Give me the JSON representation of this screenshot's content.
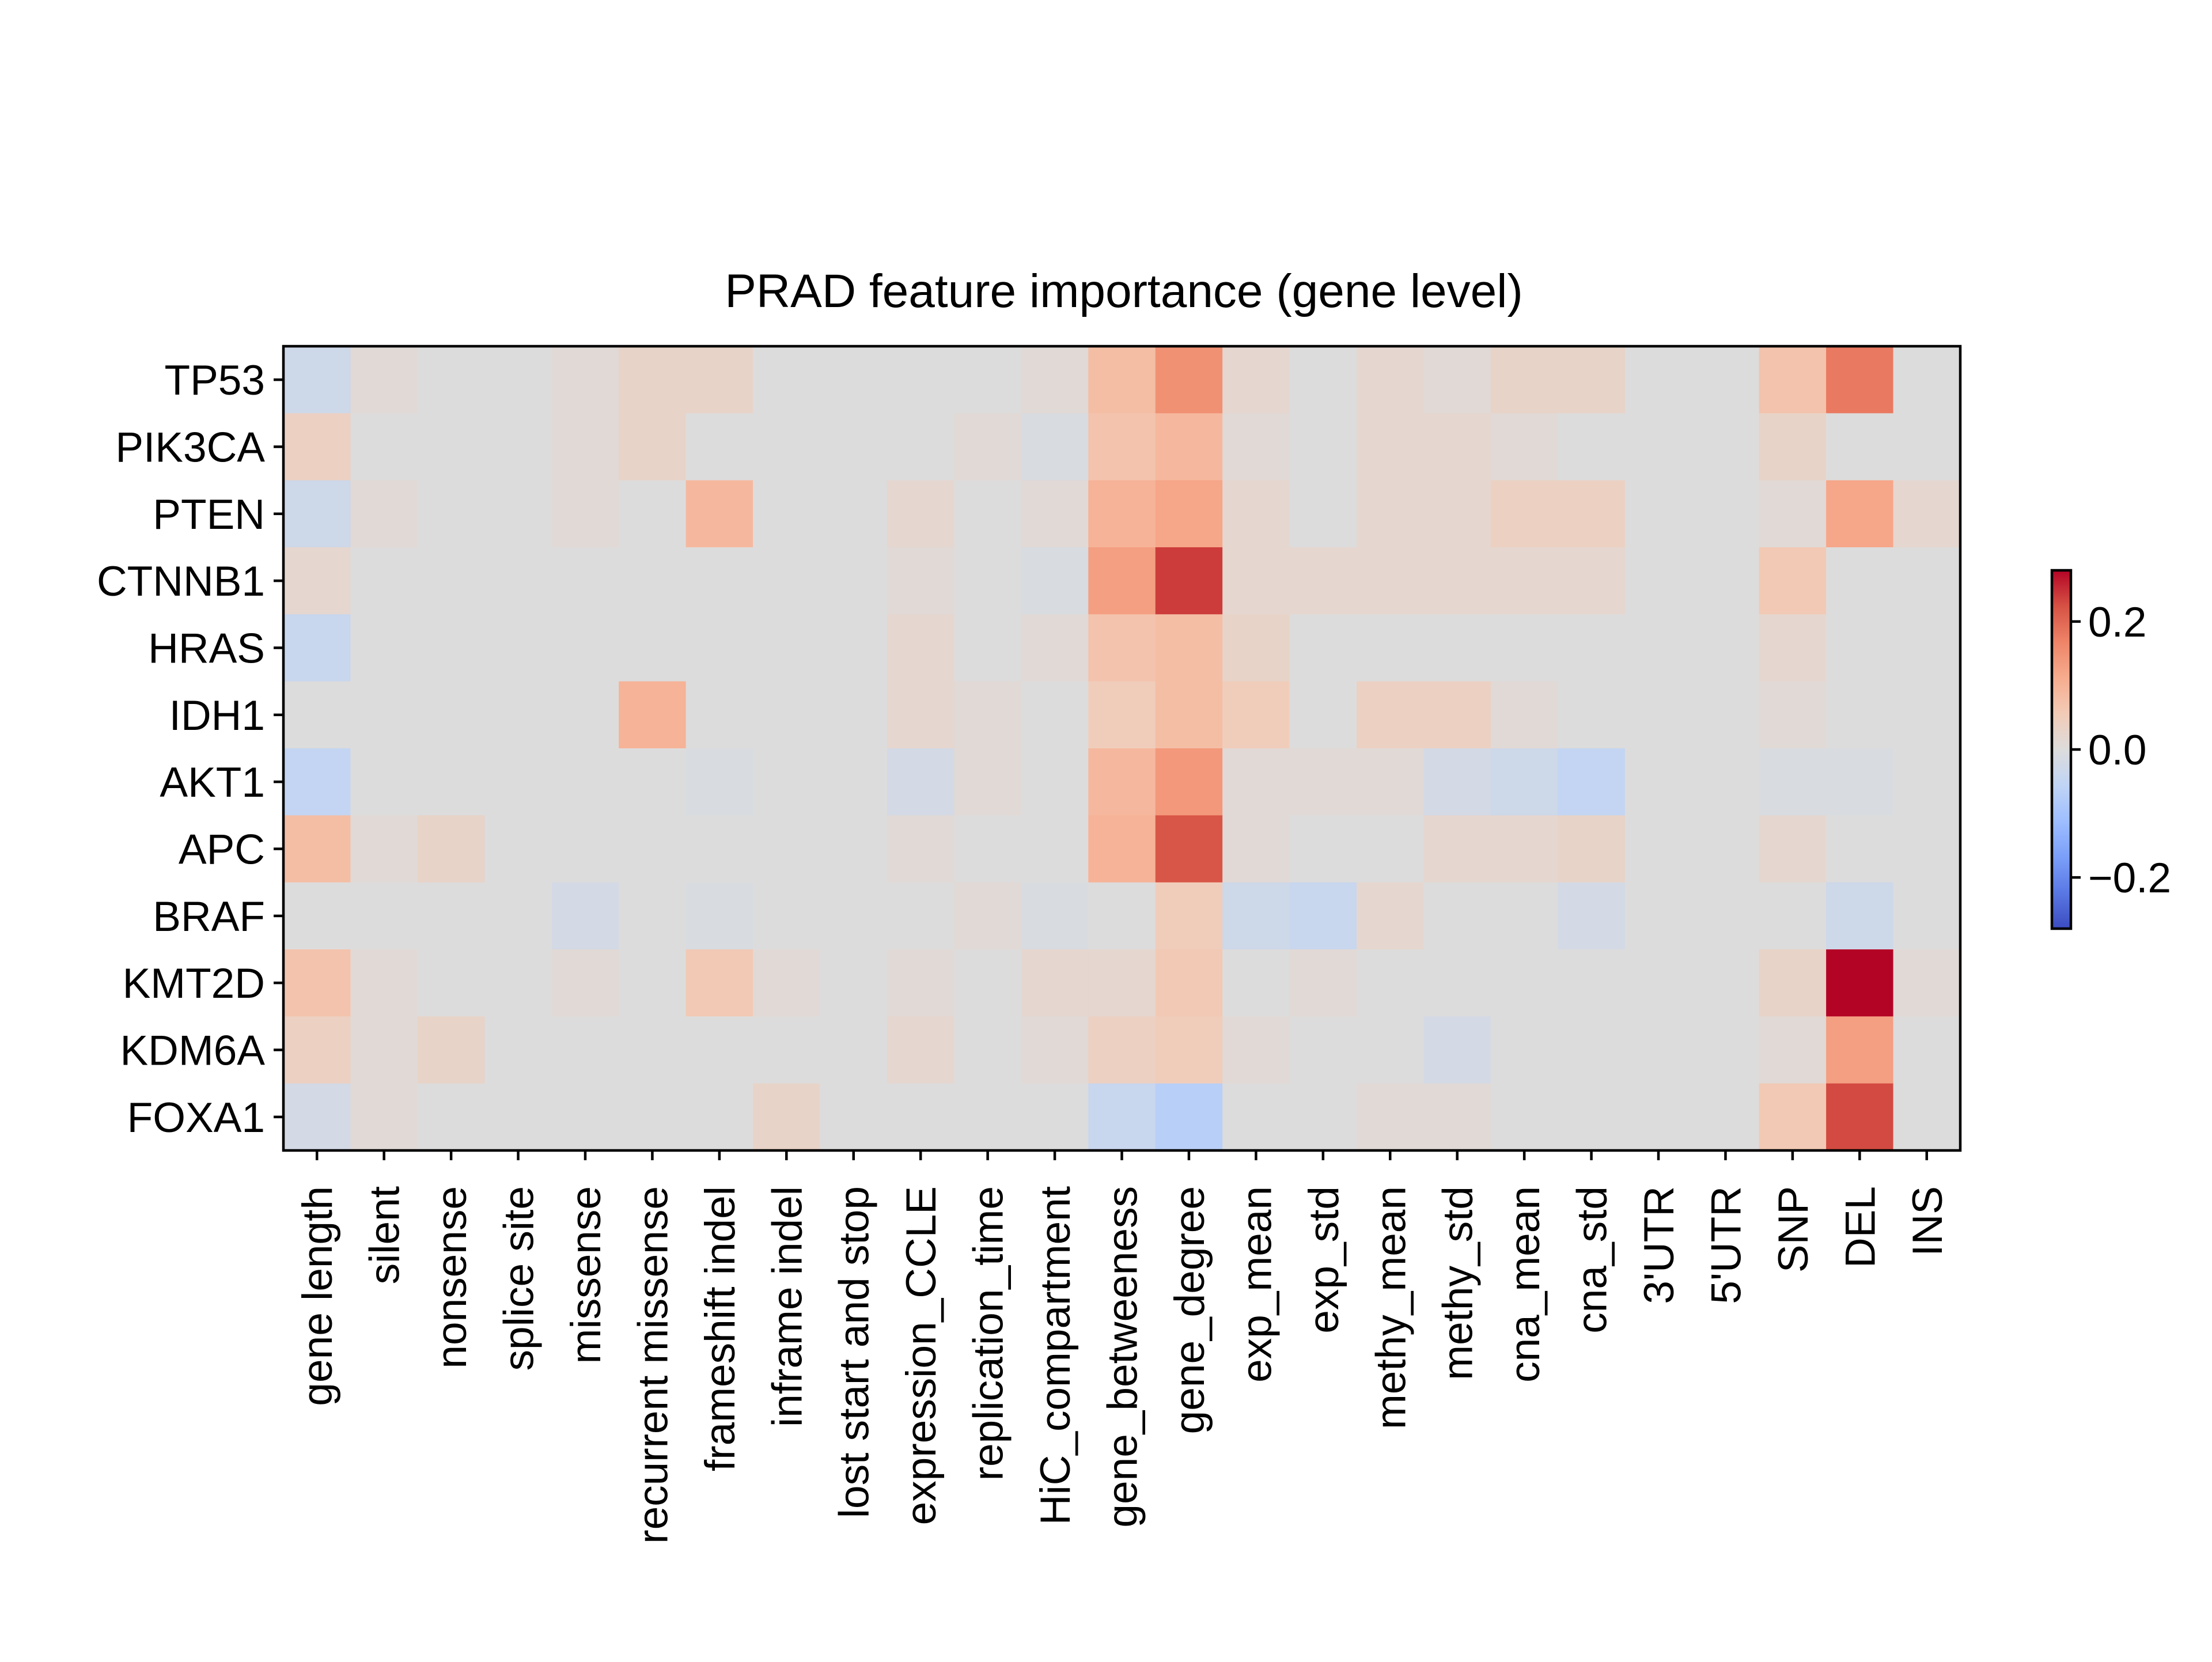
{
  "chart_data": {
    "type": "heatmap",
    "title": "PRAD feature importance (gene level)",
    "xlabel": "",
    "ylabel": "",
    "rows": [
      "TP53",
      "PIK3CA",
      "PTEN",
      "CTNNB1",
      "HRAS",
      "IDH1",
      "AKT1",
      "APC",
      "BRAF",
      "KMT2D",
      "KDM6A",
      "FOXA1"
    ],
    "columns": [
      "gene length",
      "silent",
      "nonsense",
      "splice site",
      "missense",
      "recurrent missense",
      "frameshift indel",
      "inframe indel",
      "lost start and stop",
      "expression_CCLE",
      "replication_time",
      "HiC_compartment",
      "gene_betweeness",
      "gene_degree",
      "exp_mean",
      "exp_std",
      "methy_mean",
      "methy_std",
      "cna_mean",
      "cna_std",
      "3'UTR",
      "5'UTR",
      "SNP",
      "DEL",
      "INS"
    ],
    "values": [
      [
        -0.03,
        0.01,
        0.0,
        0.0,
        0.01,
        0.03,
        0.03,
        0.0,
        0.0,
        0.0,
        0.0,
        0.01,
        0.08,
        0.15,
        0.02,
        0.0,
        0.02,
        0.01,
        0.03,
        0.03,
        0.0,
        0.0,
        0.07,
        0.18,
        0.0
      ],
      [
        0.04,
        0.0,
        0.0,
        0.0,
        0.01,
        0.03,
        0.0,
        0.0,
        0.0,
        0.0,
        0.01,
        -0.01,
        0.07,
        0.09,
        0.01,
        0.0,
        0.02,
        0.02,
        0.01,
        0.0,
        0.0,
        0.0,
        0.03,
        0.0,
        0.0
      ],
      [
        -0.03,
        0.01,
        0.0,
        0.0,
        0.01,
        0.0,
        0.09,
        0.0,
        0.0,
        0.02,
        0.0,
        0.01,
        0.1,
        0.12,
        0.02,
        0.0,
        0.02,
        0.02,
        0.04,
        0.04,
        0.0,
        0.0,
        0.01,
        0.12,
        0.02
      ],
      [
        0.02,
        0.0,
        0.0,
        0.0,
        0.0,
        0.0,
        0.0,
        0.0,
        0.0,
        0.01,
        0.0,
        -0.01,
        0.13,
        0.24,
        0.02,
        0.02,
        0.02,
        0.02,
        0.02,
        0.02,
        0.0,
        0.0,
        0.06,
        0.0,
        0.0
      ],
      [
        -0.04,
        0.0,
        0.0,
        0.0,
        0.0,
        0.0,
        0.0,
        0.0,
        0.0,
        0.02,
        0.0,
        0.01,
        0.07,
        0.08,
        0.03,
        0.0,
        0.0,
        0.0,
        0.0,
        0.0,
        0.0,
        0.0,
        0.02,
        0.0,
        0.0
      ],
      [
        0.0,
        0.0,
        0.0,
        0.0,
        0.0,
        0.1,
        0.0,
        0.0,
        0.0,
        0.02,
        0.01,
        0.0,
        0.05,
        0.08,
        0.05,
        0.0,
        0.04,
        0.04,
        0.01,
        0.0,
        0.0,
        0.0,
        0.01,
        0.0,
        0.0
      ],
      [
        -0.05,
        0.0,
        0.0,
        0.0,
        0.0,
        0.0,
        -0.01,
        0.0,
        0.0,
        -0.02,
        0.01,
        0.0,
        0.09,
        0.14,
        0.01,
        0.01,
        0.01,
        -0.02,
        -0.03,
        -0.05,
        0.0,
        0.0,
        -0.01,
        -0.01,
        0.0
      ],
      [
        0.08,
        0.01,
        0.03,
        0.0,
        0.0,
        0.0,
        0.0,
        0.0,
        0.0,
        0.01,
        0.0,
        0.0,
        0.1,
        0.22,
        0.01,
        0.0,
        0.0,
        0.02,
        0.02,
        0.03,
        0.0,
        0.0,
        0.02,
        0.0,
        0.0
      ],
      [
        0.0,
        0.0,
        0.0,
        0.0,
        -0.02,
        0.0,
        -0.01,
        0.0,
        0.0,
        0.0,
        0.01,
        -0.01,
        0.0,
        0.05,
        -0.03,
        -0.04,
        0.02,
        0.0,
        0.0,
        -0.02,
        0.0,
        0.0,
        0.0,
        -0.03,
        0.0
      ],
      [
        0.07,
        0.01,
        0.0,
        0.0,
        0.01,
        0.0,
        0.06,
        0.01,
        0.0,
        0.01,
        0.0,
        0.02,
        0.02,
        0.06,
        0.0,
        0.01,
        0.0,
        0.0,
        0.0,
        0.0,
        0.0,
        0.0,
        0.03,
        0.28,
        0.01
      ],
      [
        0.04,
        0.01,
        0.03,
        0.0,
        0.0,
        0.0,
        0.0,
        0.0,
        0.0,
        0.02,
        0.0,
        0.01,
        0.04,
        0.05,
        0.01,
        0.0,
        0.0,
        -0.02,
        0.0,
        0.0,
        0.0,
        0.0,
        0.01,
        0.13,
        0.0
      ],
      [
        -0.02,
        0.01,
        0.0,
        0.0,
        0.0,
        0.0,
        0.0,
        0.03,
        0.0,
        0.0,
        0.0,
        0.0,
        -0.04,
        -0.07,
        0.0,
        0.0,
        0.01,
        0.01,
        0.0,
        0.0,
        0.0,
        0.0,
        0.06,
        0.23,
        0.0
      ]
    ],
    "vmin": -0.28,
    "vmax": 0.28,
    "colormap": "coolwarm",
    "colorbar": {
      "ticks": [
        0.2,
        0.0,
        -0.2
      ],
      "tick_labels": [
        "0.2",
        "0.0",
        "−0.2"
      ],
      "colors": [
        "#3b4cc0",
        "#5a78e4",
        "#7b9ff9",
        "#9ebeff",
        "#c0d4f5",
        "#dddcdc",
        "#f2cbb7",
        "#f7ac8e",
        "#ee8468",
        "#d65244",
        "#b40426"
      ]
    }
  }
}
